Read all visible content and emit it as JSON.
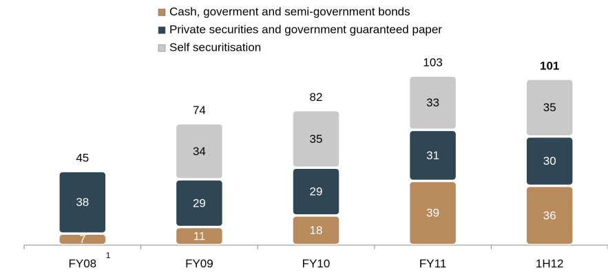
{
  "chart_data": {
    "type": "stacked_bar",
    "categories": [
      "FY08",
      "FY09",
      "FY10",
      "FY11",
      "1H12"
    ],
    "category_notes": [
      "1",
      null,
      null,
      null,
      null
    ],
    "series": [
      {
        "name": "Cash, goverment and semi-government bonds",
        "color": "#b88a5c",
        "values": [
          7,
          11,
          18,
          39,
          36
        ]
      },
      {
        "name": "Private securities and government guaranteed paper",
        "color": "#2f4654",
        "values": [
          38,
          29,
          29,
          31,
          30
        ]
      },
      {
        "name": "Self securitisation",
        "color": "#c9c9c9",
        "values": [
          null,
          34,
          35,
          33,
          35
        ]
      }
    ],
    "totals": [
      45,
      74,
      82,
      103,
      101
    ],
    "bold_last_total": true,
    "legend": "top"
  }
}
